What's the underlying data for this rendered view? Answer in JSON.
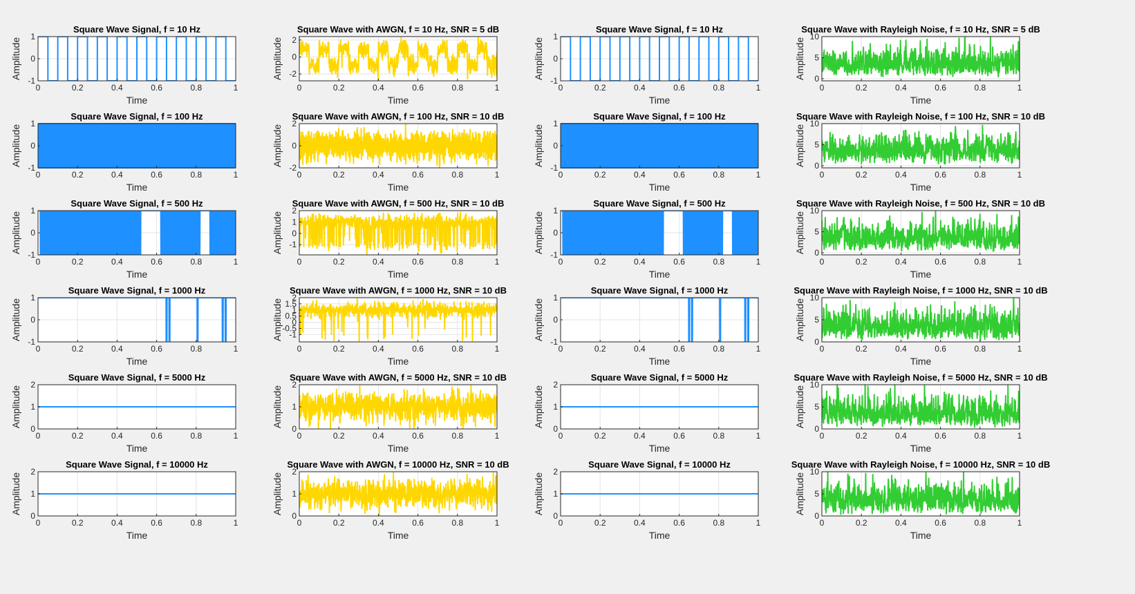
{
  "figure": {
    "background": "#f0f0f0",
    "colors": {
      "clean": "#1e90ff",
      "awgn": "#ffd700",
      "rayleigh": "#32cd32"
    }
  },
  "chart_data": [
    {
      "type": "line",
      "title": "Square Wave Signal, f = 10 Hz",
      "xlabel": "Time",
      "ylabel": "Amplitude",
      "xlim": [
        0,
        1
      ],
      "ylim": [
        -1,
        1
      ],
      "xticks": [
        "0",
        "0.2",
        "0.4",
        "0.6",
        "0.8",
        "1"
      ],
      "yticks": [
        "-1",
        "0",
        "1"
      ],
      "grid": true,
      "signal": "square",
      "frequency_hz": 10,
      "series": [
        {
          "color": "#1e90ff",
          "values": []
        }
      ]
    },
    {
      "type": "line",
      "title": "Square Wave with AWGN, f = 10 Hz, SNR = 5 dB",
      "xlabel": "Time",
      "ylabel": "Amplitude",
      "xlim": [
        0,
        1
      ],
      "ylim": [
        -2.8,
        2.4
      ],
      "xticks": [
        "0",
        "0.2",
        "0.4",
        "0.6",
        "0.8",
        "1"
      ],
      "yticks": [
        "-2",
        "0",
        "2"
      ],
      "grid": true,
      "signal": "awgn",
      "frequency_hz": 10,
      "snr_db": 5,
      "series": [
        {
          "color": "#ffd700",
          "values": []
        }
      ]
    },
    {
      "type": "line",
      "title": "Square Wave Signal, f = 10 Hz",
      "xlabel": "Time",
      "ylabel": "Amplitude",
      "xlim": [
        0,
        1
      ],
      "ylim": [
        -1,
        1
      ],
      "xticks": [
        "0",
        "0.2",
        "0.4",
        "0.6",
        "0.8",
        "1"
      ],
      "yticks": [
        "-1",
        "0",
        "1"
      ],
      "grid": true,
      "signal": "square",
      "frequency_hz": 10,
      "series": [
        {
          "color": "#1e90ff",
          "values": []
        }
      ]
    },
    {
      "type": "line",
      "title": "Square Wave with Rayleigh Noise, f = 10 Hz, SNR = 5 dB",
      "xlabel": "Time",
      "ylabel": "Amplitude",
      "xlim": [
        0,
        1
      ],
      "ylim": [
        -0.5,
        10
      ],
      "xticks": [
        "0",
        "0.2",
        "0.4",
        "0.6",
        "0.8",
        "1"
      ],
      "yticks": [
        "0",
        "5",
        "10"
      ],
      "grid": true,
      "signal": "rayleigh",
      "frequency_hz": 10,
      "snr_db": 5,
      "series": [
        {
          "color": "#32cd32",
          "values": []
        }
      ]
    },
    {
      "type": "line",
      "title": "Square Wave Signal, f = 100 Hz",
      "xlabel": "Time",
      "ylabel": "Amplitude",
      "xlim": [
        0,
        1
      ],
      "ylim": [
        -1,
        1
      ],
      "xticks": [
        "0",
        "0.2",
        "0.4",
        "0.6",
        "0.8",
        "1"
      ],
      "yticks": [
        "-1",
        "0",
        "1"
      ],
      "grid": true,
      "signal": "square",
      "frequency_hz": 100,
      "series": [
        {
          "color": "#1e90ff",
          "values": []
        }
      ]
    },
    {
      "type": "line",
      "title": "Square Wave with AWGN, f = 100 Hz, SNR = 10 dB",
      "xlabel": "Time",
      "ylabel": "Amplitude",
      "xlim": [
        0,
        1
      ],
      "ylim": [
        -2,
        2
      ],
      "xticks": [
        "0",
        "0.2",
        "0.4",
        "0.6",
        "0.8",
        "1"
      ],
      "yticks": [
        "-2",
        "0",
        "2"
      ],
      "grid": true,
      "signal": "awgn_dense",
      "frequency_hz": 100,
      "snr_db": 10,
      "series": [
        {
          "color": "#ffd700",
          "values": []
        }
      ]
    },
    {
      "type": "line",
      "title": "Square Wave Signal, f = 100 Hz",
      "xlabel": "Time",
      "ylabel": "Amplitude",
      "xlim": [
        0,
        1
      ],
      "ylim": [
        -1,
        1
      ],
      "xticks": [
        "0",
        "0.2",
        "0.4",
        "0.6",
        "0.8",
        "1"
      ],
      "yticks": [
        "-1",
        "0",
        "1"
      ],
      "grid": true,
      "signal": "square",
      "frequency_hz": 100,
      "series": [
        {
          "color": "#1e90ff",
          "values": []
        }
      ]
    },
    {
      "type": "line",
      "title": "Square Wave with Rayleigh Noise, f = 100 Hz, SNR = 10 dB",
      "xlabel": "Time",
      "ylabel": "Amplitude",
      "xlim": [
        0,
        1
      ],
      "ylim": [
        -0.5,
        10
      ],
      "xticks": [
        "0",
        "0.2",
        "0.4",
        "0.6",
        "0.8",
        "1"
      ],
      "yticks": [
        "0",
        "5",
        "10"
      ],
      "grid": true,
      "signal": "rayleigh",
      "frequency_hz": 100,
      "snr_db": 10,
      "series": [
        {
          "color": "#32cd32",
          "values": []
        }
      ]
    },
    {
      "type": "line",
      "title": "Square Wave Signal, f = 500 Hz",
      "xlabel": "Time",
      "ylabel": "Amplitude",
      "xlim": [
        0,
        1
      ],
      "ylim": [
        -1,
        1
      ],
      "xticks": [
        "0",
        "0.2",
        "0.4",
        "0.6",
        "0.8",
        "1"
      ],
      "yticks": [
        "-1",
        "0",
        "1"
      ],
      "grid": true,
      "signal": "aliased",
      "frequency_hz": 500,
      "series": [
        {
          "color": "#1e90ff",
          "values": []
        }
      ]
    },
    {
      "type": "line",
      "title": "Square Wave with AWGN, f = 500 Hz, SNR = 10 dB",
      "xlabel": "Time",
      "ylabel": "Amplitude",
      "xlim": [
        -1.9,
        2
      ],
      "ylim_ticks": [
        -1,
        0,
        1,
        2
      ],
      "xticks": [
        "0",
        "0.2",
        "0.4",
        "0.6",
        "0.8",
        "1"
      ],
      "yticks": [
        "-1",
        "0",
        "1",
        "2"
      ],
      "grid": true,
      "signal": "aliased_awgn",
      "frequency_hz": 500,
      "snr_db": 10,
      "series": [
        {
          "color": "#ffd700",
          "values": []
        }
      ]
    },
    {
      "type": "line",
      "title": "Square Wave Signal, f = 500 Hz",
      "xlabel": "Time",
      "ylabel": "Amplitude",
      "xlim": [
        0,
        1
      ],
      "ylim": [
        -1,
        1
      ],
      "xticks": [
        "0",
        "0.2",
        "0.4",
        "0.6",
        "0.8",
        "1"
      ],
      "yticks": [
        "-1",
        "0",
        "1"
      ],
      "grid": true,
      "signal": "aliased",
      "frequency_hz": 500,
      "series": [
        {
          "color": "#1e90ff",
          "values": []
        }
      ]
    },
    {
      "type": "line",
      "title": "Square Wave with Rayleigh Noise, f = 500 Hz, SNR = 10 dB",
      "xlabel": "Time",
      "ylabel": "Amplitude",
      "xlim": [
        0,
        1
      ],
      "ylim": [
        -0.5,
        10
      ],
      "xticks": [
        "0",
        "0.2",
        "0.4",
        "0.6",
        "0.8",
        "1"
      ],
      "yticks": [
        "0",
        "5",
        "10"
      ],
      "grid": true,
      "signal": "rayleigh",
      "frequency_hz": 500,
      "snr_db": 10,
      "series": [
        {
          "color": "#32cd32",
          "values": []
        }
      ]
    },
    {
      "type": "line",
      "title": "Square Wave Signal, f = 1000 Hz",
      "xlabel": "Time",
      "ylabel": "Amplitude",
      "xlim": [
        0,
        1
      ],
      "ylim": [
        -1,
        1
      ],
      "xticks": [
        "0",
        "0.2",
        "0.4",
        "0.6",
        "0.8",
        "1"
      ],
      "yticks": [
        "-1",
        "0",
        "1"
      ],
      "grid": true,
      "signal": "sparse",
      "frequency_hz": 1000,
      "series": [
        {
          "color": "#1e90ff",
          "values": []
        }
      ]
    },
    {
      "type": "line",
      "title": "Square Wave with AWGN, f = 1000 Hz, SNR = 10 dB",
      "xlabel": "Time",
      "ylabel": "Amplitude",
      "xlim": [
        0,
        1
      ],
      "ylim": [
        -1.6,
        2
      ],
      "xticks": [
        "0",
        "0.2",
        "0.4",
        "0.6",
        "0.8",
        "1"
      ],
      "yticks": [
        "-1",
        "-0.5",
        "0",
        "0.5",
        "1",
        "1.5",
        "2"
      ],
      "grid": true,
      "signal": "sparse_awgn",
      "frequency_hz": 1000,
      "snr_db": 10,
      "series": [
        {
          "color": "#ffd700",
          "values": []
        }
      ]
    },
    {
      "type": "line",
      "title": "Square Wave Signal, f = 1000 Hz",
      "xlabel": "Time",
      "ylabel": "Amplitude",
      "xlim": [
        0,
        1
      ],
      "ylim": [
        -1,
        1
      ],
      "xticks": [
        "0",
        "0.2",
        "0.4",
        "0.6",
        "0.8",
        "1"
      ],
      "yticks": [
        "-1",
        "0",
        "1"
      ],
      "grid": true,
      "signal": "sparse",
      "frequency_hz": 1000,
      "series": [
        {
          "color": "#1e90ff",
          "values": []
        }
      ]
    },
    {
      "type": "line",
      "title": "Square Wave with Rayleigh Noise, f = 1000 Hz, SNR = 10 dB",
      "xlabel": "Time",
      "ylabel": "Amplitude",
      "xlim": [
        0,
        1
      ],
      "ylim": [
        0,
        10
      ],
      "xticks": [
        "0",
        "0.2",
        "0.4",
        "0.6",
        "0.8",
        "1"
      ],
      "yticks": [
        "0",
        "5",
        "10"
      ],
      "grid": true,
      "signal": "rayleigh",
      "frequency_hz": 1000,
      "snr_db": 10,
      "series": [
        {
          "color": "#32cd32",
          "values": []
        }
      ]
    },
    {
      "type": "line",
      "title": "Square Wave Signal, f = 5000 Hz",
      "xlabel": "Time",
      "ylabel": "Amplitude",
      "xlim": [
        0,
        1
      ],
      "ylim": [
        0,
        2
      ],
      "xticks": [
        "0",
        "0.2",
        "0.4",
        "0.6",
        "0.8",
        "1"
      ],
      "yticks": [
        "0",
        "1",
        "2"
      ],
      "grid": true,
      "signal": "constant",
      "frequency_hz": 5000,
      "series": [
        {
          "color": "#1e90ff",
          "values": []
        }
      ]
    },
    {
      "type": "line",
      "title": "Square Wave with AWGN, f = 5000 Hz, SNR = 10 dB",
      "xlabel": "Time",
      "ylabel": "Amplitude",
      "xlim": [
        0,
        1
      ],
      "ylim": [
        0,
        2
      ],
      "xticks": [
        "0",
        "0.2",
        "0.4",
        "0.6",
        "0.8",
        "1"
      ],
      "yticks": [
        "0",
        "1",
        "2"
      ],
      "grid": true,
      "signal": "const_awgn",
      "frequency_hz": 5000,
      "snr_db": 10,
      "series": [
        {
          "color": "#ffd700",
          "values": []
        }
      ]
    },
    {
      "type": "line",
      "title": "Square Wave Signal, f = 5000 Hz",
      "xlabel": "Time",
      "ylabel": "Amplitude",
      "xlim": [
        0,
        1
      ],
      "ylim": [
        0,
        2
      ],
      "xticks": [
        "0",
        "0.2",
        "0.4",
        "0.6",
        "0.8",
        "1"
      ],
      "yticks": [
        "0",
        "1",
        "2"
      ],
      "grid": true,
      "signal": "constant",
      "frequency_hz": 5000,
      "series": [
        {
          "color": "#1e90ff",
          "values": []
        }
      ]
    },
    {
      "type": "line",
      "title": "Square Wave with Rayleigh Noise, f = 5000 Hz, SNR = 10 dB",
      "xlabel": "Time",
      "ylabel": "Amplitude",
      "xlim": [
        0,
        1
      ],
      "ylim": [
        0,
        10
      ],
      "xticks": [
        "0",
        "0.2",
        "0.4",
        "0.6",
        "0.8",
        "1"
      ],
      "yticks": [
        "0",
        "5",
        "10"
      ],
      "grid": true,
      "signal": "rayleigh",
      "frequency_hz": 5000,
      "snr_db": 10,
      "series": [
        {
          "color": "#32cd32",
          "values": []
        }
      ]
    },
    {
      "type": "line",
      "title": "Square Wave Signal, f = 10000 Hz",
      "xlabel": "Time",
      "ylabel": "Amplitude",
      "xlim": [
        0,
        1
      ],
      "ylim": [
        0,
        2
      ],
      "xticks": [
        "0",
        "0.2",
        "0.4",
        "0.6",
        "0.8",
        "1"
      ],
      "yticks": [
        "0",
        "1",
        "2"
      ],
      "grid": true,
      "signal": "constant",
      "frequency_hz": 10000,
      "series": [
        {
          "color": "#1e90ff",
          "values": []
        }
      ]
    },
    {
      "type": "line",
      "title": "Square Wave with AWGN, f = 10000 Hz, SNR = 10 dB",
      "xlabel": "Time",
      "ylabel": "Amplitude",
      "xlim": [
        0,
        1
      ],
      "ylim": [
        0,
        2
      ],
      "xticks": [
        "0",
        "0.2",
        "0.4",
        "0.6",
        "0.8",
        "1"
      ],
      "yticks": [
        "0",
        "1",
        "2"
      ],
      "grid": true,
      "signal": "const_awgn",
      "frequency_hz": 10000,
      "snr_db": 10,
      "series": [
        {
          "color": "#ffd700",
          "values": []
        }
      ]
    },
    {
      "type": "line",
      "title": "Square Wave Signal, f = 10000 Hz",
      "xlabel": "Time",
      "ylabel": "Amplitude",
      "xlim": [
        0,
        1
      ],
      "ylim": [
        0,
        2
      ],
      "xticks": [
        "0",
        "0.2",
        "0.4",
        "0.6",
        "0.8",
        "1"
      ],
      "yticks": [
        "0",
        "1",
        "2"
      ],
      "grid": true,
      "signal": "constant",
      "frequency_hz": 10000,
      "series": [
        {
          "color": "#1e90ff",
          "values": []
        }
      ]
    },
    {
      "type": "line",
      "title": "Square Wave with Rayleigh Noise, f = 10000 Hz, SNR = 10 dB",
      "xlabel": "Time",
      "ylabel": "Amplitude",
      "xlim": [
        0,
        1
      ],
      "ylim": [
        0,
        10
      ],
      "xticks": [
        "0",
        "0.2",
        "0.4",
        "0.6",
        "0.8",
        "1"
      ],
      "yticks": [
        "0",
        "5",
        "10"
      ],
      "grid": true,
      "signal": "rayleigh",
      "frequency_hz": 10000,
      "snr_db": 10,
      "series": [
        {
          "color": "#32cd32",
          "values": []
        }
      ]
    }
  ]
}
